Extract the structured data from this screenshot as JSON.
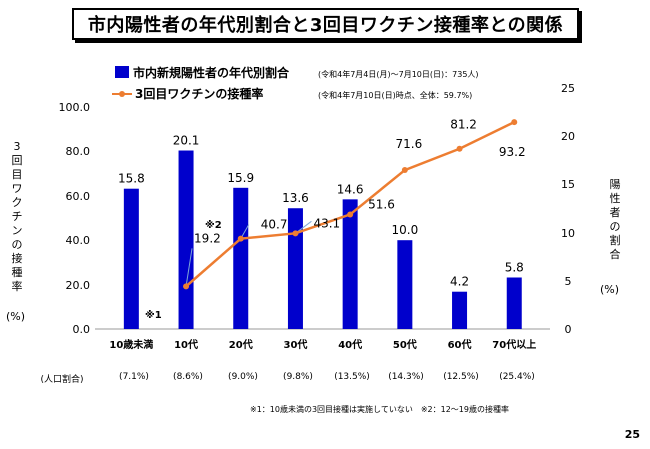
{
  "title": "市内陽性者の年代別割合と3回目ワクチン接種率との関係",
  "page_number": "25",
  "footnote": "※1：10歳未満の3回目接種は実施していない　※2：12～19歳の接種率",
  "population_header": "(人口割合)",
  "left_axis_label": "3回目ワクチンの接種率",
  "left_axis_unit": "(%)",
  "right_axis_label": "陽性者の割合",
  "right_axis_unit": "(%)",
  "note1_marker": "※1",
  "note2_marker": "※2",
  "colors": {
    "bar": "#0000cc",
    "line": "#ed7d31",
    "leader": "#7fa7d6"
  },
  "chart_data": {
    "type": "bar+line",
    "categories": [
      "10歳未満",
      "10代",
      "20代",
      "30代",
      "40代",
      "50代",
      "60代",
      "70代以上"
    ],
    "population_share": [
      "(7.1%)",
      "(8.6%)",
      "(9.0%)",
      "(9.8%)",
      "(13.5%)",
      "(14.3%)",
      "(12.5%)",
      "(25.4%)"
    ],
    "series": [
      {
        "name": "市内新規陽性者の年代別割合",
        "note": "(令和4年7月4日(月)～7月10日(日)：735人)",
        "type": "bar",
        "axis": "right",
        "values": [
          15.8,
          20.1,
          15.9,
          13.6,
          14.6,
          10.0,
          4.2,
          5.8
        ],
        "labels": [
          "15.8",
          "20.1",
          "15.9",
          "13.6",
          "14.6",
          "10.0",
          "4.2",
          "5.8"
        ]
      },
      {
        "name": "3回目ワクチンの接種率",
        "note": "(令和4年7月10日(日)時点、全体：59.7%)",
        "type": "line",
        "axis": "left",
        "values": [
          null,
          19.2,
          40.7,
          43.1,
          51.6,
          71.6,
          81.2,
          93.2
        ],
        "labels": [
          "",
          "19.2",
          "40.7",
          "43.1",
          "51.6",
          "71.6",
          "81.2",
          "93.2"
        ]
      }
    ],
    "left_axis": {
      "min": 0,
      "max": 100,
      "ticks": [
        "0.0",
        "20.0",
        "40.0",
        "60.0",
        "80.0",
        "100.0"
      ]
    },
    "right_axis": {
      "min": 0,
      "max": 25,
      "ticks": [
        "0",
        "5",
        "10",
        "15",
        "20",
        "25"
      ]
    }
  }
}
